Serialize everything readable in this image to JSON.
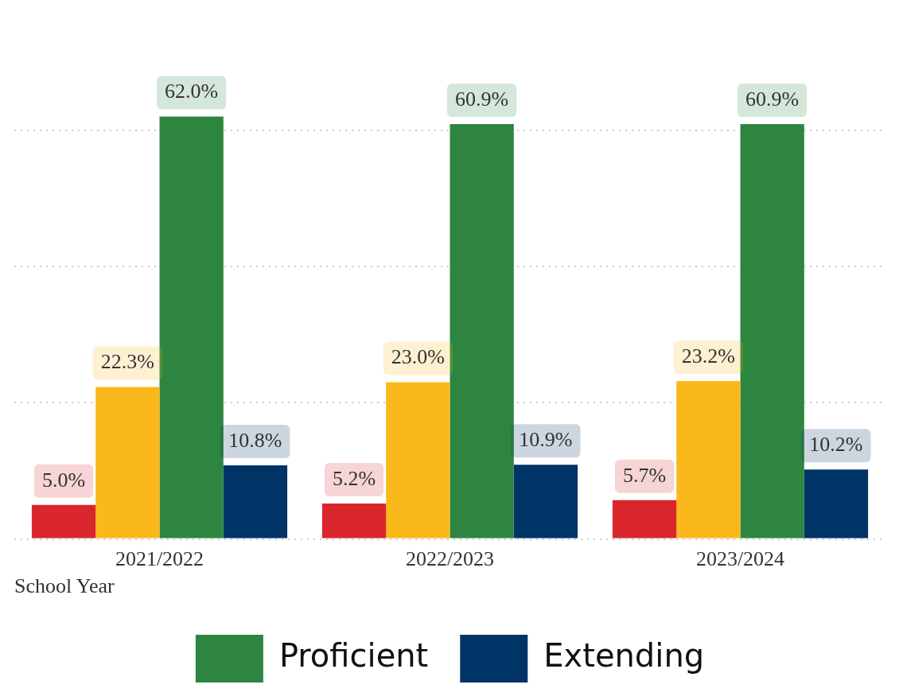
{
  "chart_data": {
    "type": "bar",
    "xlabel": "School Year",
    "categories": [
      "2021/2022",
      "2022/2023",
      "2023/2024"
    ],
    "series": [
      {
        "color": "#d9262c",
        "values": [
          5.0,
          5.2,
          5.7
        ],
        "value_labels": [
          "5.0%",
          "5.2%",
          "5.7%"
        ]
      },
      {
        "color": "#fbb81b",
        "values": [
          22.3,
          23.0,
          23.2
        ],
        "value_labels": [
          "22.3%",
          "23.0%",
          "23.2%"
        ]
      },
      {
        "name": "Proficient",
        "color": "#2e8540",
        "values": [
          62.0,
          60.9,
          60.9
        ],
        "value_labels": [
          "62.0%",
          "60.9%",
          "60.9%"
        ]
      },
      {
        "name": "Extending",
        "color": "#003366",
        "values": [
          10.8,
          10.9,
          10.2
        ],
        "value_labels": [
          "10.8%",
          "10.9%",
          "10.2%"
        ]
      }
    ],
    "yticks": [
      {
        "value": 0,
        "label": null
      },
      {
        "value": 20,
        "label": null
      },
      {
        "value": 40,
        "label": null
      },
      {
        "value": 60,
        "label": null
      }
    ],
    "tick_labels": "x",
    "grid": "y",
    "legend": "bottom"
  }
}
